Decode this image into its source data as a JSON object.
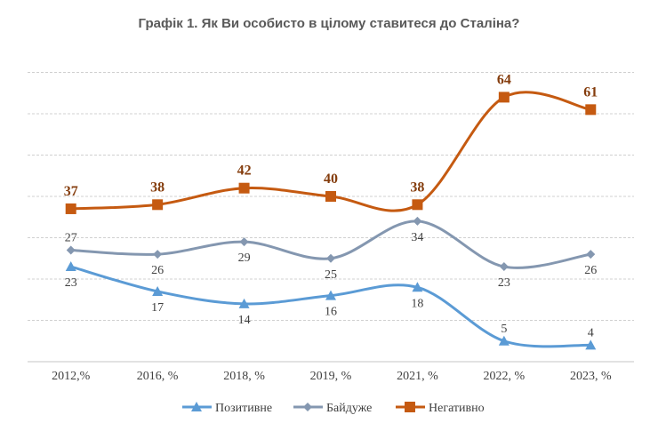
{
  "chart_data": {
    "type": "line",
    "title": "Графік 1. Як Ви особисто в цілому ставитеся до Сталіна?",
    "categories": [
      "2012,%",
      "2016, %",
      "2018, %",
      "2019, %",
      "2021, %",
      "2022, %",
      "2023, %"
    ],
    "ylim": [
      0,
      70
    ],
    "grid": true,
    "smooth": true,
    "legend_position": "bottom",
    "series": [
      {
        "name": "Позитивне",
        "values": [
          23,
          17,
          14,
          16,
          18,
          5,
          4
        ],
        "color": "#5b9bd5",
        "marker": "triangle"
      },
      {
        "name": "Байдуже",
        "values": [
          27,
          26,
          29,
          25,
          34,
          23,
          26
        ],
        "color": "#8497b0",
        "marker": "diamond"
      },
      {
        "name": "Негативно",
        "values": [
          37,
          38,
          42,
          40,
          38,
          64,
          61
        ],
        "color": "#c55a11",
        "marker": "square"
      }
    ]
  }
}
